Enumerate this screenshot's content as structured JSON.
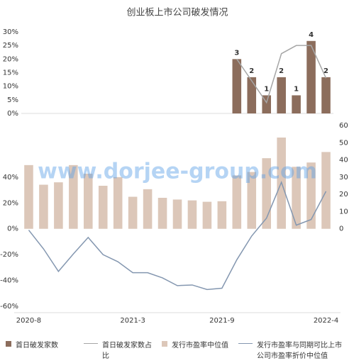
{
  "chart_data": [
    {
      "type": "combo",
      "title": "创业板上市公司破发情况",
      "ylim": [
        0,
        30
      ],
      "yticks": [
        {
          "value": 0,
          "label": "0%"
        },
        {
          "value": 5,
          "label": "5%"
        },
        {
          "value": 10,
          "label": "10%"
        },
        {
          "value": 15,
          "label": "15%"
        },
        {
          "value": 20,
          "label": "20%"
        },
        {
          "value": 25,
          "label": "25%"
        },
        {
          "value": 30,
          "label": "30%"
        }
      ],
      "y2lim": [
        0,
        4.5
      ],
      "series": [
        {
          "name": "首日破发家数",
          "type": "bar",
          "axis": "y2",
          "color": "#8c6d5c",
          "data_labels": true,
          "values": [
            null,
            null,
            null,
            null,
            null,
            null,
            null,
            null,
            null,
            null,
            null,
            null,
            null,
            null,
            3,
            2,
            1,
            2,
            1,
            4,
            2
          ]
        },
        {
          "name": "首日破发家数占比",
          "type": "line",
          "color": "#a6a6a6",
          "values": [
            null,
            null,
            null,
            null,
            null,
            null,
            null,
            null,
            null,
            null,
            null,
            null,
            null,
            null,
            20,
            12,
            4,
            22,
            25,
            25,
            13
          ]
        }
      ]
    },
    {
      "type": "combo",
      "categories": [
        "2020-8",
        null,
        null,
        null,
        null,
        null,
        null,
        "2021-3",
        null,
        null,
        null,
        null,
        null,
        "2021-9",
        null,
        null,
        null,
        null,
        null,
        null,
        "2022-4"
      ],
      "ylim": [
        -60,
        80
      ],
      "yticks": [
        {
          "value": -60,
          "label": "-60%"
        },
        {
          "value": -40,
          "label": "-40%"
        },
        {
          "value": -20,
          "label": "-20%"
        },
        {
          "value": 0,
          "label": "0%"
        },
        {
          "value": 20,
          "label": "20%"
        },
        {
          "value": 40,
          "label": "40%"
        }
      ],
      "y2lim": [
        -45,
        60
      ],
      "y2ticks": [
        0,
        10,
        20,
        30,
        40,
        50,
        60
      ],
      "annotations": [
        "www.dorjee-group.com"
      ],
      "series": [
        {
          "name": "发行市盈率中位值",
          "type": "bar",
          "axis": "y2",
          "color": "#dcc7b9",
          "values": [
            37,
            25.6,
            27,
            37,
            32,
            25,
            30,
            18.6,
            23,
            18,
            17,
            16.5,
            15.7,
            16,
            31,
            33,
            41,
            53,
            36,
            38.5,
            44.6
          ]
        },
        {
          "name": "发行市盈率与同期可比上市公司市盈率折价中位值",
          "type": "line",
          "color": "#8497b0",
          "values": [
            -1,
            -15.6,
            -33,
            -19.5,
            -6.7,
            -20,
            -25.5,
            -34,
            -34,
            -38,
            -44,
            -43.5,
            -47,
            -46,
            -24,
            -5.6,
            8.3,
            36,
            2.8,
            7.2,
            29
          ]
        }
      ]
    }
  ]
}
